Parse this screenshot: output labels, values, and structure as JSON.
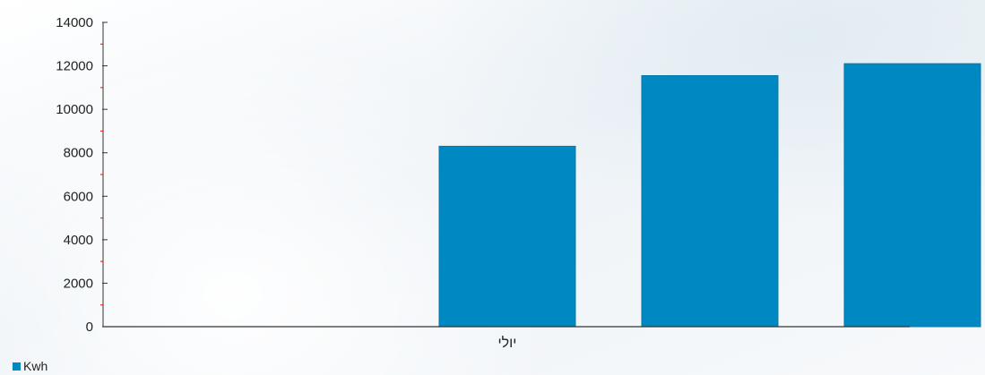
{
  "chart_data": {
    "type": "bar",
    "categories": [
      "",
      "",
      "יולי",
      "",
      ""
    ],
    "series": [
      {
        "name": "Kwh",
        "values": [
          null,
          null,
          8300,
          11550,
          12100
        ]
      }
    ],
    "ylim": [
      0,
      14000
    ],
    "yticks": [
      0,
      2000,
      4000,
      6000,
      8000,
      10000,
      12000,
      14000
    ],
    "legend_position": "bottom-left",
    "grid": false
  },
  "colors": {
    "bar": "#0088c2",
    "axis": "#333333",
    "minor_tick": "#e03030"
  }
}
